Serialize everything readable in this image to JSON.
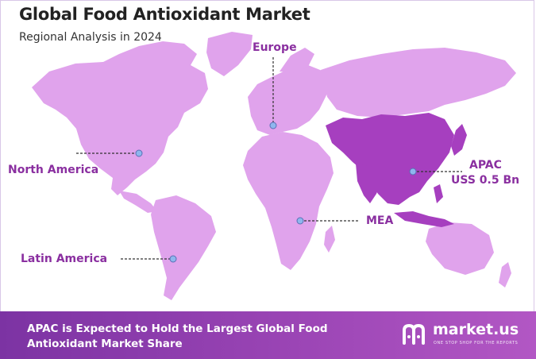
{
  "header": {
    "title": "Global Food Antioxidant Market",
    "subtitle": "Regional Analysis in 2024"
  },
  "map": {
    "base_color": "#e0a3ec",
    "highlight_color": "#a63fbf",
    "marker_color": "#8fb6ee",
    "regions": [
      {
        "id": "north-america",
        "label": "North America"
      },
      {
        "id": "latin-america",
        "label": "Latin America"
      },
      {
        "id": "europe",
        "label": "Europe"
      },
      {
        "id": "mea",
        "label": "MEA"
      },
      {
        "id": "apac",
        "label": "APAC",
        "value": "USS 0.5 Bn",
        "highlighted": true
      }
    ]
  },
  "footer": {
    "line1": "APAC is Expected to Hold the Largest Global Food",
    "line2": "Antioxidant Market Share",
    "brand_name": "market.us",
    "brand_tagline": "ONE STOP SHOP FOR THE REPORTS"
  }
}
